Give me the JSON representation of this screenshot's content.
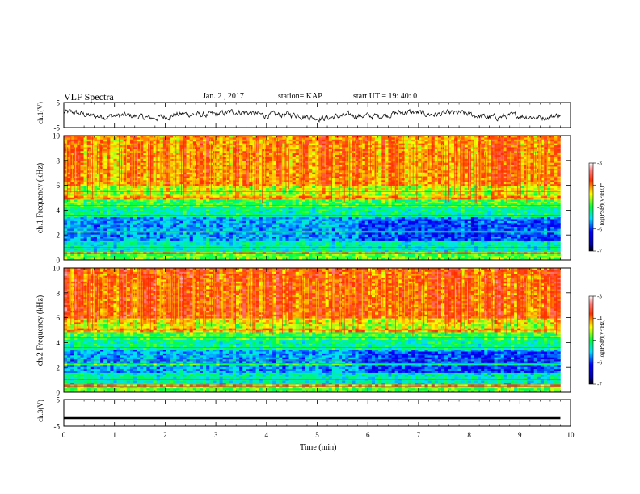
{
  "header": {
    "title": "VLF Spectra",
    "date": "Jan. 2 , 2017",
    "station": "station= KAP",
    "start": "start UT = 19: 40: 0"
  },
  "chart_data": [
    {
      "type": "line",
      "name": "ch1_voltage",
      "ylabel": "ch.1(V)",
      "xlim": [
        0,
        10
      ],
      "ylim": [
        -5,
        5
      ],
      "x_end": 9.8,
      "yticks": [
        "5",
        "-5"
      ]
    },
    {
      "type": "heatmap",
      "name": "ch1_spectrogram",
      "ylabel": "ch.1 Frequency (kHz)",
      "xlim": [
        0,
        10
      ],
      "ylim": [
        0,
        10
      ],
      "x_end": 9.8,
      "yticks": [
        "0",
        "2",
        "4",
        "6",
        "8",
        "10"
      ],
      "colorbar": {
        "label": "log(PSD)(V²/Hz)",
        "ticks": [
          "-3",
          "-4",
          "-5",
          "-6",
          "-7"
        ],
        "range": [
          -7,
          -3
        ]
      }
    },
    {
      "type": "heatmap",
      "name": "ch2_spectrogram",
      "ylabel": "ch.2 Frequency (kHz)",
      "xlim": [
        0,
        10
      ],
      "ylim": [
        0,
        10
      ],
      "x_end": 9.8,
      "yticks": [
        "0",
        "2",
        "4",
        "6",
        "8",
        "10"
      ],
      "colorbar": {
        "label": "log(PSD)(V²/Hz)",
        "ticks": [
          "-3",
          "-4",
          "-5",
          "-6",
          "-7"
        ],
        "range": [
          -7,
          -3
        ]
      }
    },
    {
      "type": "line",
      "name": "ch3_voltage",
      "ylabel": "ch.3(V)",
      "xlim": [
        0,
        10
      ],
      "ylim": [
        -5,
        5
      ],
      "x_end": 9.8,
      "value": 0,
      "yticks": [
        "5",
        "-5"
      ]
    }
  ],
  "xaxis": {
    "label": "Time (min)",
    "ticks": [
      "0",
      "1",
      "2",
      "3",
      "4",
      "5",
      "6",
      "7",
      "8",
      "9",
      "10"
    ]
  }
}
